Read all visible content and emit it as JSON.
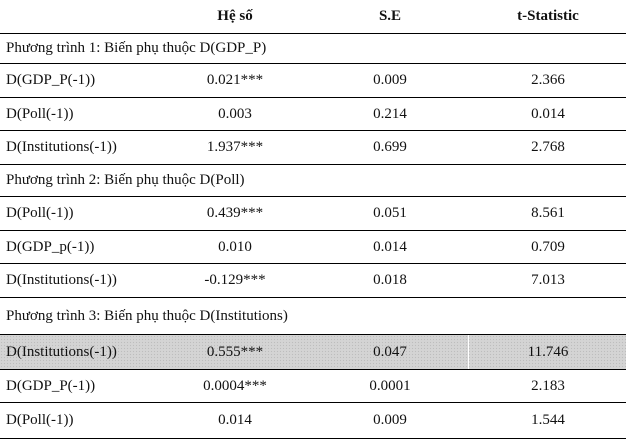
{
  "headers": [
    "",
    "Hệ số",
    "S.E",
    "t-Statistic"
  ],
  "sections": [
    {
      "title": "Phương trình 1: Biến phụ thuộc D(GDP_P)",
      "rows": [
        [
          "D(GDP_P(-1))",
          "0.021***",
          "0.009",
          "2.366"
        ],
        [
          "D(Poll(-1))",
          "0.003",
          "0.214",
          "0.014"
        ],
        [
          "D(Institutions(-1))",
          "1.937***",
          "0.699",
          "2.768"
        ]
      ]
    },
    {
      "title": "Phương trình 2: Biến phụ thuộc D(Poll)",
      "rows": [
        [
          "D(Poll(-1))",
          "0.439***",
          "0.051",
          "8.561"
        ],
        [
          "D(GDP_p(-1))",
          "0.010",
          "0.014",
          "0.709"
        ],
        [
          "D(Institutions(-1))",
          "-0.129***",
          "0.018",
          "7.013"
        ]
      ]
    },
    {
      "title": "Phương trình 3: Biến phụ thuộc D(Institutions)",
      "rows": [
        [
          "D(Institutions(-1))",
          "0.555***",
          "0.047",
          "11.746"
        ],
        [
          "D(GDP_P(-1))",
          "0.0004***",
          "0.0001",
          "2.183"
        ],
        [
          "D(Poll(-1))",
          "0.014",
          "0.009",
          "1.544"
        ]
      ]
    }
  ]
}
